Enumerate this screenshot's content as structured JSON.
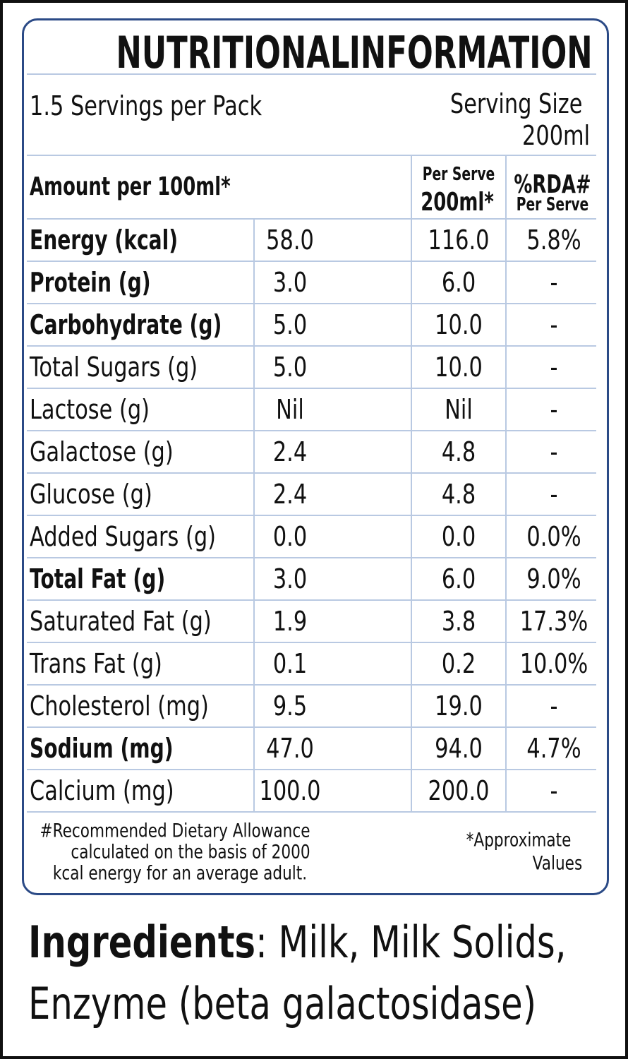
{
  "title": {
    "left": "NUTRITIONAL",
    "right": "INFORMATION"
  },
  "servings": "1.5 Servings per Pack",
  "serving_size": [
    "Serving Size",
    "200ml"
  ],
  "table": {
    "header": {
      "amount": "Amount per 100ml*",
      "per_serve": {
        "small": "Per Serve",
        "big": "200ml*"
      },
      "rda": {
        "big": "%RDA#",
        "small": "Per Serve"
      }
    },
    "rows": [
      {
        "label": "Energy (kcal)",
        "per_100ml": "58.0",
        "per_serve": "116.0",
        "rda": "5.8%",
        "bold": true
      },
      {
        "label": "Protein (g)",
        "per_100ml": "3.0",
        "per_serve": "6.0",
        "rda": "-",
        "bold": true
      },
      {
        "label": "Carbohydrate (g)",
        "per_100ml": "5.0",
        "per_serve": "10.0",
        "rda": "-",
        "bold": true
      },
      {
        "label": "Total Sugars (g)",
        "per_100ml": "5.0",
        "per_serve": "10.0",
        "rda": "-",
        "bold": false
      },
      {
        "label": "Lactose (g)",
        "per_100ml": "Nil",
        "per_serve": "Nil",
        "rda": "-",
        "bold": false
      },
      {
        "label": "Galactose (g)",
        "per_100ml": "2.4",
        "per_serve": "4.8",
        "rda": "-",
        "bold": false
      },
      {
        "label": "Glucose (g)",
        "per_100ml": "2.4",
        "per_serve": "4.8",
        "rda": "-",
        "bold": false
      },
      {
        "label": "Added Sugars (g)",
        "per_100ml": "0.0",
        "per_serve": "0.0",
        "rda": "0.0%",
        "bold": false
      },
      {
        "label": "Total Fat (g)",
        "per_100ml": "3.0",
        "per_serve": "6.0",
        "rda": "9.0%",
        "bold": true
      },
      {
        "label": "Saturated Fat (g)",
        "per_100ml": "1.9",
        "per_serve": "3.8",
        "rda": "17.3%",
        "bold": false
      },
      {
        "label": "Trans Fat (g)",
        "per_100ml": "0.1",
        "per_serve": "0.2",
        "rda": "10.0%",
        "bold": false
      },
      {
        "label": "Cholesterol (mg)",
        "per_100ml": "9.5",
        "per_serve": "19.0",
        "rda": "-",
        "bold": false
      },
      {
        "label": "Sodium (mg)",
        "per_100ml": "47.0",
        "per_serve": "94.0",
        "rda": "4.7%",
        "bold": true
      },
      {
        "label": "Calcium (mg)",
        "per_100ml": "100.0",
        "per_serve": "200.0",
        "rda": "-",
        "bold": false
      }
    ]
  },
  "footnotes": {
    "rda": [
      "#Recommended Dietary Allowance",
      "calculated on the basis of 2000",
      "kcal energy for an average adult."
    ],
    "approx": [
      "*Approximate",
      "Values"
    ]
  },
  "ingredients": {
    "label": "Ingredients",
    "text": [
      ": Milk, Milk Solids,",
      "Enzyme (beta galactosidase)"
    ]
  }
}
